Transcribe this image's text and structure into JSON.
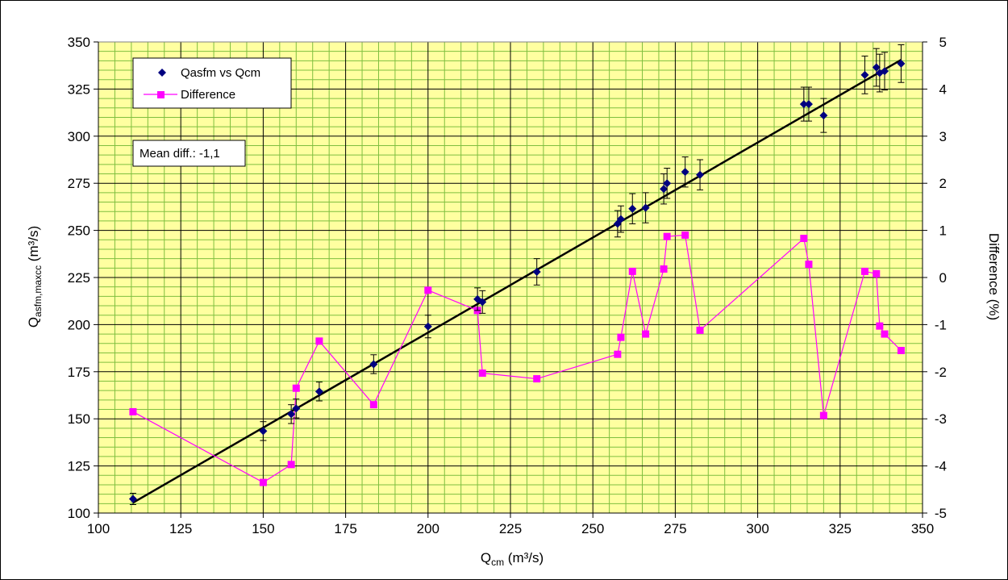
{
  "chart_data": {
    "type": "scatter",
    "xlabel": {
      "main": "Q",
      "sub": "cm",
      "unit": " (m³/s)"
    },
    "ylabel": {
      "main": "Q",
      "sub": "asfm,maxcc",
      "unit": " (m³/s)"
    },
    "y2label": "Difference (%)",
    "xlim": [
      100,
      350
    ],
    "ylim": [
      100,
      350
    ],
    "y2lim": [
      -5,
      5
    ],
    "x_ticks": [
      "100",
      "125",
      "150",
      "175",
      "200",
      "225",
      "250",
      "275",
      "300",
      "325",
      "350"
    ],
    "y_ticks": [
      "100",
      "125",
      "150",
      "175",
      "200",
      "225",
      "250",
      "275",
      "300",
      "325",
      "350"
    ],
    "y2_ticks": [
      "-5",
      "-4",
      "-3",
      "-2",
      "-1",
      "0",
      "1",
      "2",
      "3",
      "4",
      "5"
    ],
    "grid": true,
    "legend_position": "top-left",
    "annotation": "Mean diff.: -1,1",
    "colors": {
      "plot_bg": "#ffffa0",
      "minor_grid": "#7fbf3f",
      "major_grid": "#000000",
      "series1": "#000080",
      "series2": "#ff00ff",
      "fit_line": "#000000"
    },
    "series": [
      {
        "name": "Qasfm vs Qcm",
        "marker": "diamond",
        "axis": "left",
        "points": [
          {
            "x": 110.5,
            "y": 107.5,
            "err": 3
          },
          {
            "x": 150,
            "y": 143.5,
            "err": 5
          },
          {
            "x": 158.5,
            "y": 152.5,
            "err": 5
          },
          {
            "x": 160,
            "y": 155.5,
            "err": 5
          },
          {
            "x": 167,
            "y": 164.5,
            "err": 5
          },
          {
            "x": 183.5,
            "y": 179,
            "err": 5
          },
          {
            "x": 200,
            "y": 199,
            "err": 6
          },
          {
            "x": 215,
            "y": 213.5,
            "err": 6
          },
          {
            "x": 216.5,
            "y": 212,
            "err": 6
          },
          {
            "x": 233,
            "y": 228,
            "err": 7
          },
          {
            "x": 257.5,
            "y": 253.5,
            "err": 7
          },
          {
            "x": 258.5,
            "y": 256,
            "err": 7
          },
          {
            "x": 262,
            "y": 261.5,
            "err": 8
          },
          {
            "x": 266,
            "y": 262,
            "err": 8
          },
          {
            "x": 271.5,
            "y": 272,
            "err": 8
          },
          {
            "x": 272.5,
            "y": 275,
            "err": 8
          },
          {
            "x": 278,
            "y": 281,
            "err": 8
          },
          {
            "x": 282.5,
            "y": 279.5,
            "err": 8
          },
          {
            "x": 314,
            "y": 317,
            "err": 9
          },
          {
            "x": 315.5,
            "y": 317,
            "err": 9
          },
          {
            "x": 320,
            "y": 311,
            "err": 9
          },
          {
            "x": 332.5,
            "y": 332.5,
            "err": 10
          },
          {
            "x": 336,
            "y": 336.5,
            "err": 10
          },
          {
            "x": 337,
            "y": 333.5,
            "err": 10
          },
          {
            "x": 338.5,
            "y": 334.5,
            "err": 10
          },
          {
            "x": 343.5,
            "y": 338.5,
            "err": 10
          }
        ]
      },
      {
        "name": "Difference",
        "marker": "square",
        "axis": "right",
        "points": [
          {
            "x": 110.5,
            "y": -2.85
          },
          {
            "x": 150,
            "y": -4.35
          },
          {
            "x": 158.5,
            "y": -3.97
          },
          {
            "x": 160,
            "y": -2.35
          },
          {
            "x": 167,
            "y": -1.35
          },
          {
            "x": 183.5,
            "y": -2.7
          },
          {
            "x": 200,
            "y": -0.27
          },
          {
            "x": 215,
            "y": -0.7
          },
          {
            "x": 216.5,
            "y": -2.03
          },
          {
            "x": 233,
            "y": -2.15
          },
          {
            "x": 257.5,
            "y": -1.63
          },
          {
            "x": 258.5,
            "y": -1.27
          },
          {
            "x": 262,
            "y": 0.13
          },
          {
            "x": 266,
            "y": -1.2
          },
          {
            "x": 271.5,
            "y": 0.18
          },
          {
            "x": 272.5,
            "y": 0.87
          },
          {
            "x": 278,
            "y": 0.9
          },
          {
            "x": 282.5,
            "y": -1.12
          },
          {
            "x": 314,
            "y": 0.83
          },
          {
            "x": 315.5,
            "y": 0.28
          },
          {
            "x": 320,
            "y": -2.93
          },
          {
            "x": 332.5,
            "y": 0.13
          },
          {
            "x": 336,
            "y": 0.08
          },
          {
            "x": 337,
            "y": -1.03
          },
          {
            "x": 338.5,
            "y": -1.2
          },
          {
            "x": 343.5,
            "y": -1.55
          }
        ]
      }
    ],
    "fit_line": {
      "x": [
        110.5,
        343.5
      ],
      "y": [
        105.5,
        340.5
      ]
    }
  }
}
